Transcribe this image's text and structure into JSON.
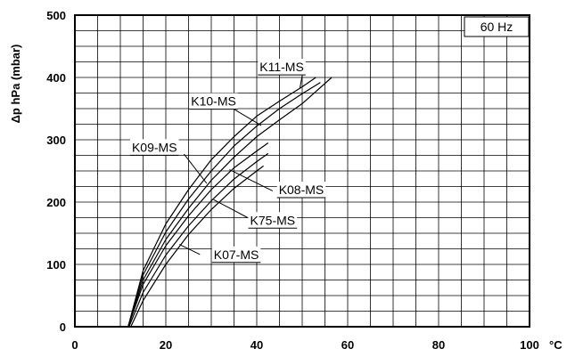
{
  "chart_data": {
    "type": "line",
    "ylabel": "Δp  hPa (mbar)",
    "xunit": "°C",
    "xlim": [
      0,
      100
    ],
    "ylim": [
      0,
      500
    ],
    "x_ticks": [
      0,
      20,
      40,
      60,
      80,
      100
    ],
    "y_ticks": [
      0,
      100,
      200,
      300,
      400,
      500
    ],
    "grid": true,
    "frequency_label": "60 Hz",
    "series": [
      {
        "name": "K11-MS",
        "points": [
          [
            11.7,
            0
          ],
          [
            15,
            90
          ],
          [
            20,
            165
          ],
          [
            25,
            220
          ],
          [
            30,
            268
          ],
          [
            35,
            305
          ],
          [
            40,
            338
          ],
          [
            45,
            362
          ],
          [
            50,
            385
          ],
          [
            53,
            400
          ]
        ]
      },
      {
        "name": "K10-MS",
        "points": [
          [
            11.7,
            0
          ],
          [
            15,
            83
          ],
          [
            20,
            152
          ],
          [
            25,
            205
          ],
          [
            30,
            250
          ],
          [
            35,
            290
          ],
          [
            40,
            322
          ],
          [
            45,
            350
          ],
          [
            50,
            374
          ],
          [
            54,
            392
          ]
        ]
      },
      {
        "name": "K09-MS",
        "points": [
          [
            11.7,
            0
          ],
          [
            15,
            75
          ],
          [
            20,
            140
          ],
          [
            25,
            190
          ],
          [
            30,
            235
          ],
          [
            35,
            272
          ],
          [
            40,
            305
          ],
          [
            45,
            332
          ],
          [
            50,
            358
          ],
          [
            56.5,
            400
          ]
        ]
      },
      {
        "name": "K08-MS",
        "points": [
          [
            11.7,
            0
          ],
          [
            15,
            68
          ],
          [
            20,
            130
          ],
          [
            25,
            178
          ],
          [
            30,
            220
          ],
          [
            35,
            255
          ],
          [
            40,
            282
          ],
          [
            42.5,
            295
          ]
        ]
      },
      {
        "name": "K75-MS",
        "points": [
          [
            11.9,
            0
          ],
          [
            15,
            55
          ],
          [
            20,
            115
          ],
          [
            25,
            162
          ],
          [
            30,
            202
          ],
          [
            35,
            237
          ],
          [
            40,
            265
          ],
          [
            42.5,
            278
          ]
        ]
      },
      {
        "name": "K07-MS",
        "points": [
          [
            12.3,
            0
          ],
          [
            15,
            42
          ],
          [
            20,
            100
          ],
          [
            25,
            148
          ],
          [
            30,
            188
          ],
          [
            35,
            222
          ],
          [
            40,
            250
          ],
          [
            41.5,
            258
          ]
        ]
      }
    ],
    "labels": [
      {
        "text": "K11-MS",
        "series": "K11-MS",
        "x": 45.5,
        "y": 417,
        "leader_from": [
          50,
          403
        ],
        "leader_to": [
          49.5,
          383
        ]
      },
      {
        "text": "K10-MS",
        "series": "K10-MS",
        "x": 30.5,
        "y": 362,
        "leader_from": [
          35,
          349
        ],
        "leader_to": [
          41,
          323
        ]
      },
      {
        "text": "K09-MS",
        "series": "K09-MS",
        "x": 17.5,
        "y": 288,
        "leader_from": [
          24,
          277
        ],
        "leader_to": [
          29,
          230
        ]
      },
      {
        "text": "K08-MS",
        "series": "K08-MS",
        "x": 49.8,
        "y": 220,
        "leader_from": [
          43.5,
          218
        ],
        "leader_to": [
          34,
          252
        ]
      },
      {
        "text": "K75-MS",
        "series": "K75-MS",
        "x": 43.5,
        "y": 171,
        "leader_from": [
          38,
          175
        ],
        "leader_to": [
          30.5,
          204
        ]
      },
      {
        "text": "K07-MS",
        "series": "K07-MS",
        "x": 35.5,
        "y": 116,
        "leader_from": [
          27.5,
          116
        ],
        "leader_to": [
          23,
          132
        ]
      }
    ]
  }
}
